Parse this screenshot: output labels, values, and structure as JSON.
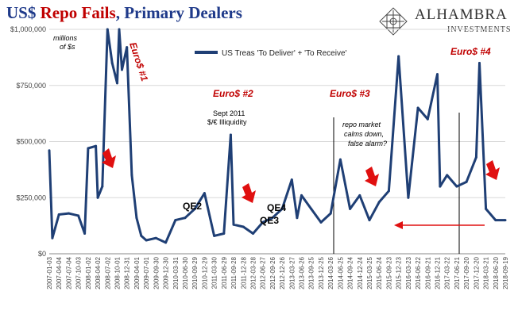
{
  "title": {
    "part1": "US$ ",
    "part2": "Repo Fails",
    "part3": ", Primary Dealers"
  },
  "logo": {
    "name": "ALHAMBRA",
    "sub": "INVESTMENTS",
    "icon": "alhambra-logo-icon"
  },
  "chart_data": {
    "type": "line",
    "ylim": [
      0,
      1000000
    ],
    "yticks": [
      0,
      250000,
      500000,
      750000,
      1000000
    ],
    "ytick_labels": [
      "$0",
      "$250,000",
      "$500,000",
      "$750,000",
      "$1,000,000"
    ],
    "y_unit_note": "millions of $s",
    "x_tick_labels": [
      "2007-01-03",
      "2007-04-04",
      "2007-07-04",
      "2007-10-03",
      "2008-01-02",
      "2008-04-02",
      "2008-07-02",
      "2008-10-01",
      "2008-12-31",
      "2009-04-01",
      "2009-07-01",
      "2009-09-30",
      "2009-12-30",
      "2010-03-31",
      "2010-06-30",
      "2010-09-29",
      "2010-12-29",
      "2011-03-30",
      "2011-06-29",
      "2011-09-28",
      "2011-12-28",
      "2012-03-28",
      "2012-06-27",
      "2012-09-26",
      "2012-12-26",
      "2013-03-27",
      "2013-06-26",
      "2013-09-25",
      "2013-12-25",
      "2014-03-26",
      "2014-06-25",
      "2014-09-24",
      "2014-12-24",
      "2015-03-25",
      "2015-06-24",
      "2015-09-23",
      "2015-12-23",
      "2016-03-23",
      "2016-06-22",
      "2016-09-21",
      "2016-12-21",
      "2017-03-22",
      "2017-06-21",
      "2017-09-20",
      "2017-12-20",
      "2018-03-21",
      "2018-06-20",
      "2018-09-19"
    ],
    "series": [
      {
        "name": "US Treas 'To Deliver' + 'To Receive'",
        "color": "#1f3f75",
        "x": [
          "2007-01-03",
          "2007-02-01",
          "2007-04-04",
          "2007-07-04",
          "2007-10-03",
          "2007-12-01",
          "2008-01-02",
          "2008-03-15",
          "2008-04-02",
          "2008-05-15",
          "2008-07-02",
          "2008-08-15",
          "2008-10-01",
          "2008-10-20",
          "2008-11-15",
          "2008-12-31",
          "2009-02-15",
          "2009-04-01",
          "2009-05-15",
          "2009-07-01",
          "2009-09-30",
          "2009-12-30",
          "2010-03-31",
          "2010-06-30",
          "2010-09-29",
          "2010-12-29",
          "2011-03-30",
          "2011-06-29",
          "2011-09-01",
          "2011-09-28",
          "2011-12-28",
          "2012-03-28",
          "2012-06-27",
          "2012-09-26",
          "2012-12-26",
          "2013-03-27",
          "2013-05-15",
          "2013-06-26",
          "2013-09-25",
          "2013-12-25",
          "2014-03-26",
          "2014-06-25",
          "2014-09-24",
          "2014-12-24",
          "2015-03-25",
          "2015-06-24",
          "2015-09-23",
          "2015-12-23",
          "2016-03-23",
          "2016-06-22",
          "2016-09-21",
          "2016-12-21",
          "2017-01-15",
          "2017-03-22",
          "2017-06-21",
          "2017-09-20",
          "2017-12-20",
          "2018-01-20",
          "2018-03-21",
          "2018-06-20",
          "2018-09-19"
        ],
        "values": [
          460000,
          70000,
          175000,
          180000,
          170000,
          90000,
          470000,
          480000,
          250000,
          300000,
          1000000,
          850000,
          760000,
          1000000,
          820000,
          920000,
          350000,
          160000,
          80000,
          60000,
          70000,
          50000,
          150000,
          160000,
          200000,
          270000,
          80000,
          90000,
          530000,
          130000,
          120000,
          90000,
          140000,
          160000,
          200000,
          330000,
          160000,
          260000,
          200000,
          140000,
          180000,
          420000,
          200000,
          260000,
          150000,
          230000,
          280000,
          880000,
          250000,
          650000,
          600000,
          800000,
          300000,
          350000,
          300000,
          320000,
          430000,
          850000,
          200000,
          150000,
          150000
        ]
      }
    ]
  },
  "annotations": {
    "euro1": "Euro$ #1",
    "euro2": "Euro$ #2",
    "euro3": "Euro$ #3",
    "euro4": "Euro$ #4",
    "sept1": "Sept 2011",
    "sept2": "$/€ Illiquidity",
    "qe2": "QE2",
    "qe3": "QE3",
    "qe4": "QE4",
    "calm1": "repo market",
    "calm2": "calms down,",
    "calm3": "false alarm?",
    "millions1": "millions",
    "millions2": "of $s"
  },
  "colors": {
    "title_blue": "#1f3a8a",
    "title_red": "#c00000",
    "line": "#1f3f75",
    "annotation_red": "#c00000"
  }
}
